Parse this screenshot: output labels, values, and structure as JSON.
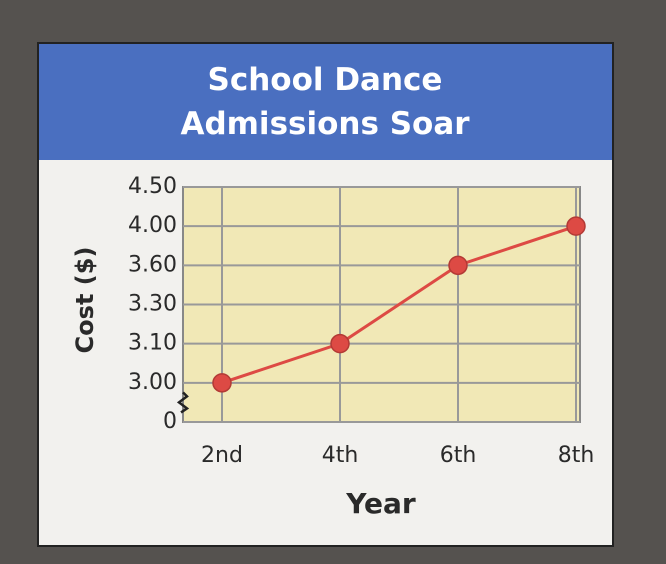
{
  "chart_data": {
    "type": "line",
    "title": "School Dance Admissions Soar",
    "x_label": "Year",
    "y_label": "Cost ($)",
    "categories": [
      "2nd",
      "4th",
      "6th",
      "8th"
    ],
    "series": [
      {
        "name": "Cost",
        "color": "#dd4a44",
        "values": [
          3.0,
          3.1,
          3.6,
          4.0
        ]
      }
    ],
    "ylim": [
      0,
      4.5
    ],
    "yticks": [
      0,
      {
        "value": 3,
        "label": "3.00"
      },
      {
        "value": 3.1,
        "label": "3.10"
      },
      {
        "value": 3.3,
        "label": "3.30"
      },
      {
        "value": 3.6,
        "label": "3.60"
      },
      {
        "value": 4,
        "label": "4.00"
      },
      {
        "value": 4.5,
        "label": "4.50"
      }
    ],
    "yscale": "even-ticks",
    "axis_break": true,
    "grid": true
  }
}
